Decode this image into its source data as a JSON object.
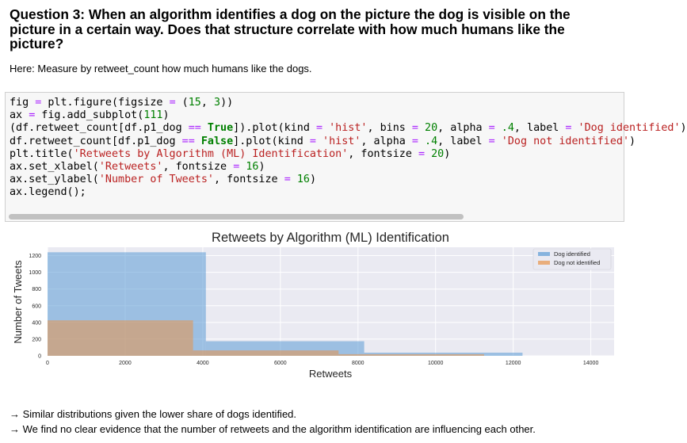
{
  "heading": "Question 3: When an algorithm identifies a dog on the picture the dog is visible on the picture in a certain way. Does that structure correlate with how much humans like the picture?",
  "note": "Here: Measure by retweet_count how much humans like the dogs.",
  "code_lines": [
    "fig = plt.figure(figsize = (15, 3))",
    "ax = fig.add_subplot(111)",
    "(df.retweet_count[df.p1_dog == True]).plot(kind = 'hist', bins = 20, alpha = .4, label = 'Dog identified')",
    "df.retweet_count[df.p1_dog == False].plot(kind = 'hist', alpha = .4, label = 'Dog not identified')",
    "plt.title('Retweets by Algorithm (ML) Identification', fontsize = 20)",
    "ax.set_xlabel('Retweets', fontsize = 16)",
    "ax.set_ylabel('Number of Tweets', fontsize = 16)",
    "ax.legend();"
  ],
  "chart_data": {
    "type": "bar",
    "title": "Retweets by Algorithm (ML) Identification",
    "xlabel": "Retweets",
    "ylabel": "Number of Tweets",
    "xlim": [
      0,
      14600
    ],
    "ylim": [
      0,
      1300
    ],
    "xticks": [
      0,
      2000,
      4000,
      6000,
      8000,
      10000,
      12000,
      14000
    ],
    "yticks": [
      0,
      200,
      400,
      600,
      800,
      1000,
      1200
    ],
    "grid": true,
    "legend_position": "top-right",
    "series": [
      {
        "name": "Dog identified",
        "color": "#5b9bd5",
        "bins": [
          [
            0,
            4080,
            1240
          ],
          [
            4080,
            8160,
            175
          ],
          [
            8160,
            12240,
            38
          ]
        ]
      },
      {
        "name": "Dog not identified",
        "color": "#e8944a",
        "bins": [
          [
            0,
            3750,
            425
          ],
          [
            3750,
            7500,
            65
          ],
          [
            7500,
            11250,
            20
          ]
        ]
      }
    ]
  },
  "bullets": [
    "→ Similar distributions given the lower share of dogs identified.",
    "→ We find no clear evidence that the number of retweets and the algorithm identification are influencing each other."
  ]
}
